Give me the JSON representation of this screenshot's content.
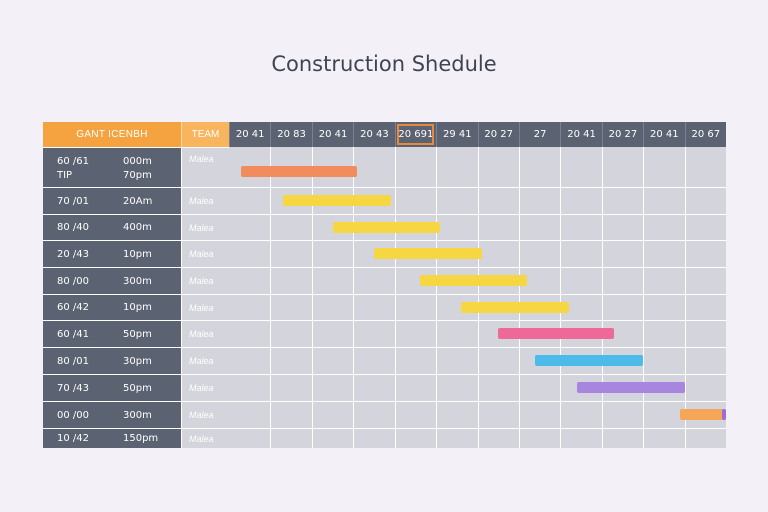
{
  "title": "Construction Shedule",
  "header": {
    "left_label": "GANT ICENBH",
    "team_label": "TEAM"
  },
  "columns": [
    "20 41",
    "20 83",
    "20 41",
    "20 43",
    "20 691",
    "29 41",
    "20 27",
    "27",
    "20 41",
    "20 27",
    "20 41",
    "20 67"
  ],
  "current_column": 4,
  "rows": [
    {
      "id": "60 /61",
      "extra": "TIP",
      "time": "000m",
      "time2": "70pm",
      "team": "Malea"
    },
    {
      "id": "70 /01",
      "time": "20Am",
      "team": "Malea"
    },
    {
      "id": "80 /40",
      "time": "400m",
      "team": "Malea"
    },
    {
      "id": "20 /43",
      "time": "10pm",
      "team": "Malea"
    },
    {
      "id": "80 /00",
      "time": "300m",
      "team": "Malea"
    },
    {
      "id": "60 /42",
      "time": "10pm",
      "team": "Malea"
    },
    {
      "id": "60 /41",
      "time": "50pm",
      "team": "Malea"
    },
    {
      "id": "80 /01",
      "time": "30pm",
      "team": "Malea"
    },
    {
      "id": "70 /43",
      "time": "50pm",
      "team": "Malea"
    },
    {
      "id": "00 /00",
      "time": "300m",
      "team": "Malea"
    },
    {
      "id": "10 /42",
      "time": "150pm",
      "team": "Malea"
    }
  ],
  "chart_data": {
    "type": "gantt",
    "title": "Construction Shedule",
    "time_axis": [
      "20 41",
      "20 83",
      "20 41",
      "20 43",
      "20 691",
      "29 41",
      "20 27",
      "27",
      "20 41",
      "20 27",
      "20 41",
      "20 67"
    ],
    "tasks": [
      {
        "row": 0,
        "start": 0.3,
        "end": 3.1,
        "color": "#f28c5c"
      },
      {
        "row": 1,
        "start": 1.3,
        "end": 3.9,
        "color": "#f6d742"
      },
      {
        "row": 2,
        "start": 2.5,
        "end": 5.1,
        "color": "#f6d742"
      },
      {
        "row": 3,
        "start": 3.5,
        "end": 6.1,
        "color": "#f6d742"
      },
      {
        "row": 4,
        "start": 4.6,
        "end": 7.2,
        "color": "#f6d742"
      },
      {
        "row": 5,
        "start": 5.6,
        "end": 8.2,
        "color": "#f6d742"
      },
      {
        "row": 6,
        "start": 6.5,
        "end": 9.3,
        "color": "#ee6a96"
      },
      {
        "row": 7,
        "start": 7.4,
        "end": 10.0,
        "color": "#4dbbea"
      },
      {
        "row": 8,
        "start": 8.4,
        "end": 11.0,
        "color": "#a886e0"
      },
      {
        "row": 9,
        "start": 10.9,
        "end": 12.0,
        "color": "#f5a656"
      },
      {
        "row": 9,
        "start": 11.9,
        "end": 12.1,
        "color": "#9b6ed8"
      }
    ]
  }
}
